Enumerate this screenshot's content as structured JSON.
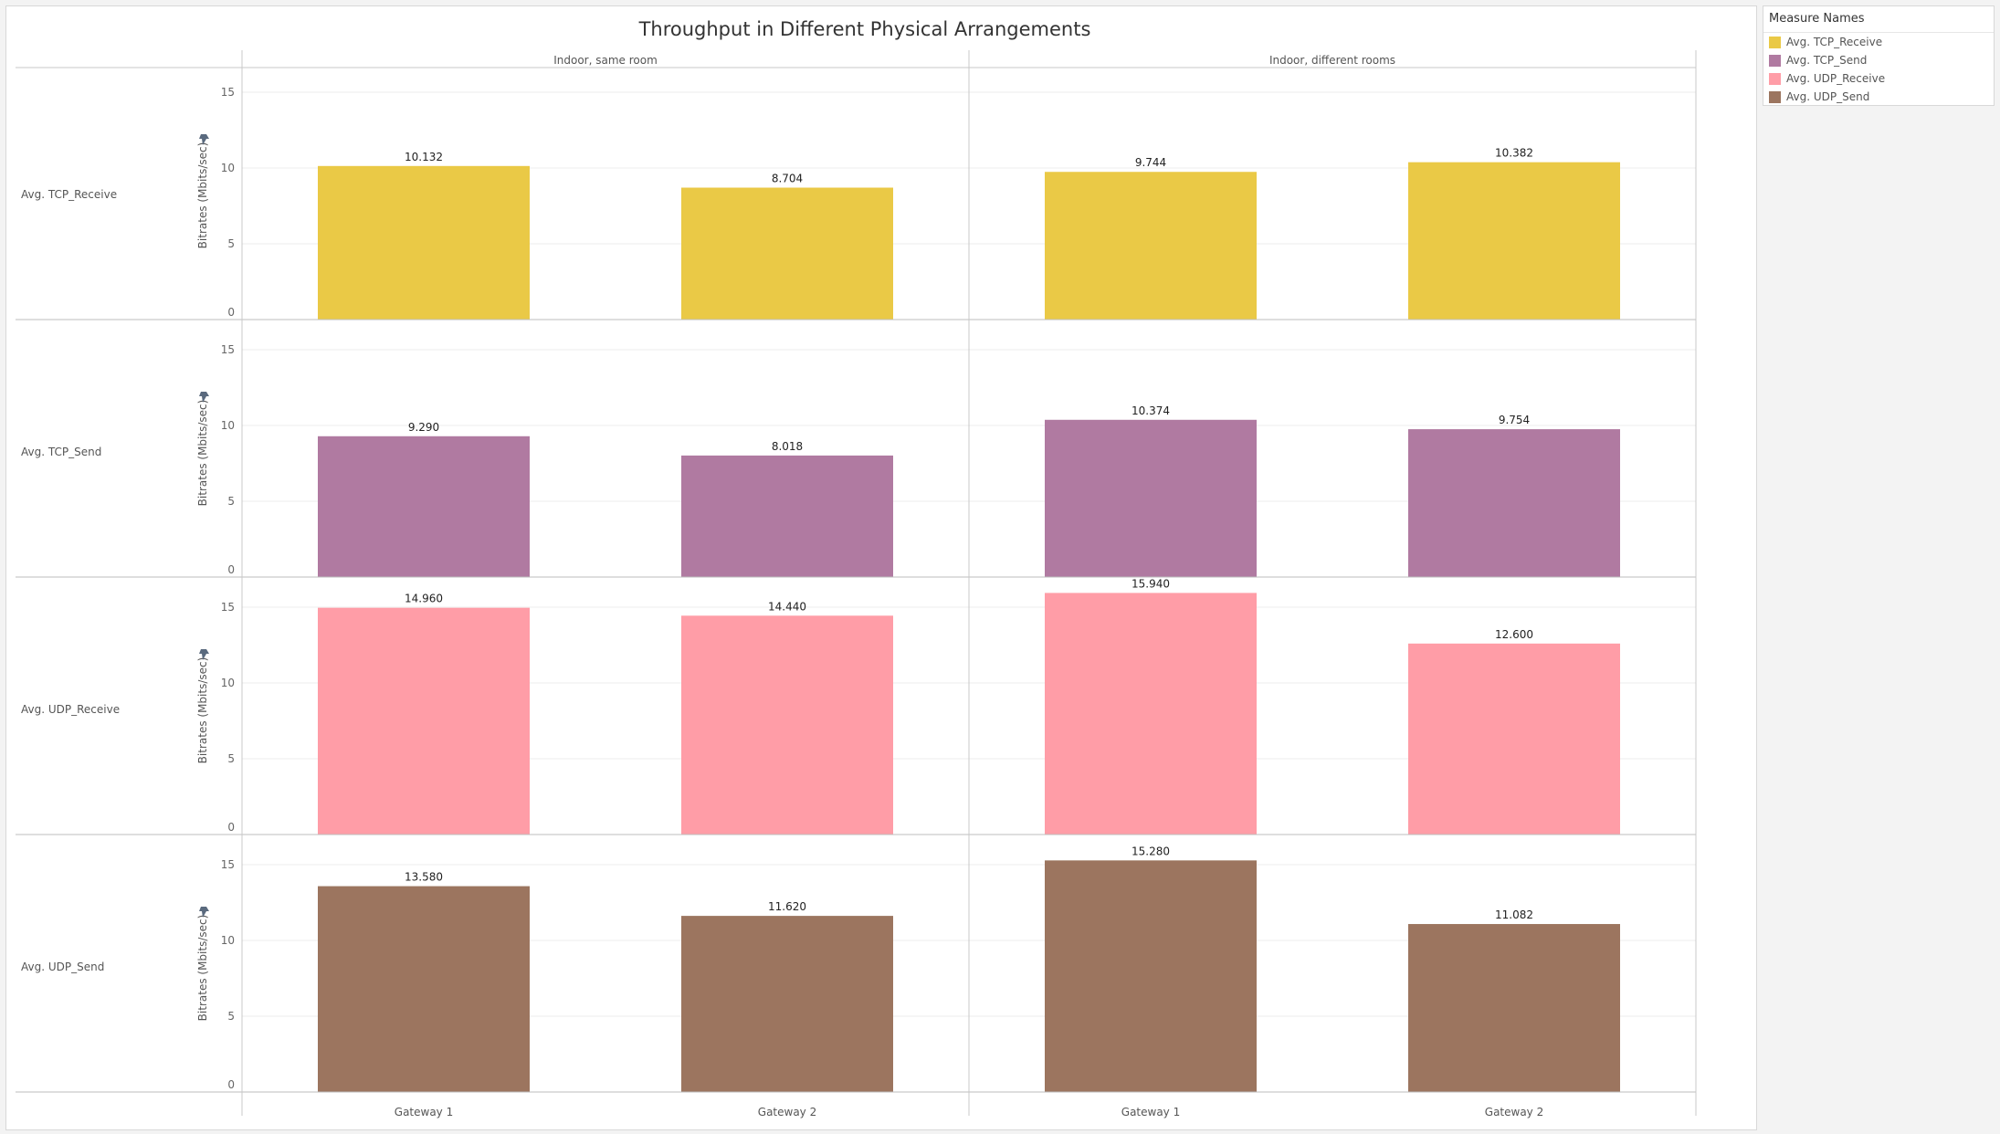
{
  "chart_data": {
    "type": "bar",
    "title": "Throughput in Different Physical Arrangements",
    "columns": [
      "Indoor, same room",
      "Indoor, different rooms"
    ],
    "categories": [
      "Gateway 1",
      "Gateway 2"
    ],
    "ylabel": "Bitrates (Mbits/sec)",
    "ylim": [
      0,
      17
    ],
    "yticks": [
      0,
      5,
      10,
      15
    ],
    "grid": true,
    "legend_position": "right",
    "legend_title": "Measure Names",
    "rows": [
      {
        "name": "Avg. TCP_Receive",
        "color": "#EAC946",
        "values": [
          [
            10.132,
            8.704
          ],
          [
            9.744,
            10.382
          ]
        ],
        "labels": [
          [
            "10.132",
            "8.704"
          ],
          [
            "9.744",
            "10.382"
          ]
        ]
      },
      {
        "name": "Avg. TCP_Send",
        "color": "#B07AA1",
        "values": [
          [
            9.29,
            8.018
          ],
          [
            10.374,
            9.754
          ]
        ],
        "labels": [
          [
            "9.290",
            "8.018"
          ],
          [
            "10.374",
            "9.754"
          ]
        ]
      },
      {
        "name": "Avg. UDP_Receive",
        "color": "#FF9DA7",
        "values": [
          [
            14.96,
            14.44
          ],
          [
            15.94,
            12.6
          ]
        ],
        "labels": [
          [
            "14.960",
            "14.440"
          ],
          [
            "15.940",
            "12.600"
          ]
        ]
      },
      {
        "name": "Avg. UDP_Send",
        "color": "#9C755F",
        "values": [
          [
            13.58,
            11.62
          ],
          [
            15.28,
            11.082
          ]
        ],
        "labels": [
          [
            "13.580",
            "11.620"
          ],
          [
            "15.280",
            "11.082"
          ]
        ]
      }
    ]
  },
  "icons": {
    "pin": "pin-icon"
  }
}
